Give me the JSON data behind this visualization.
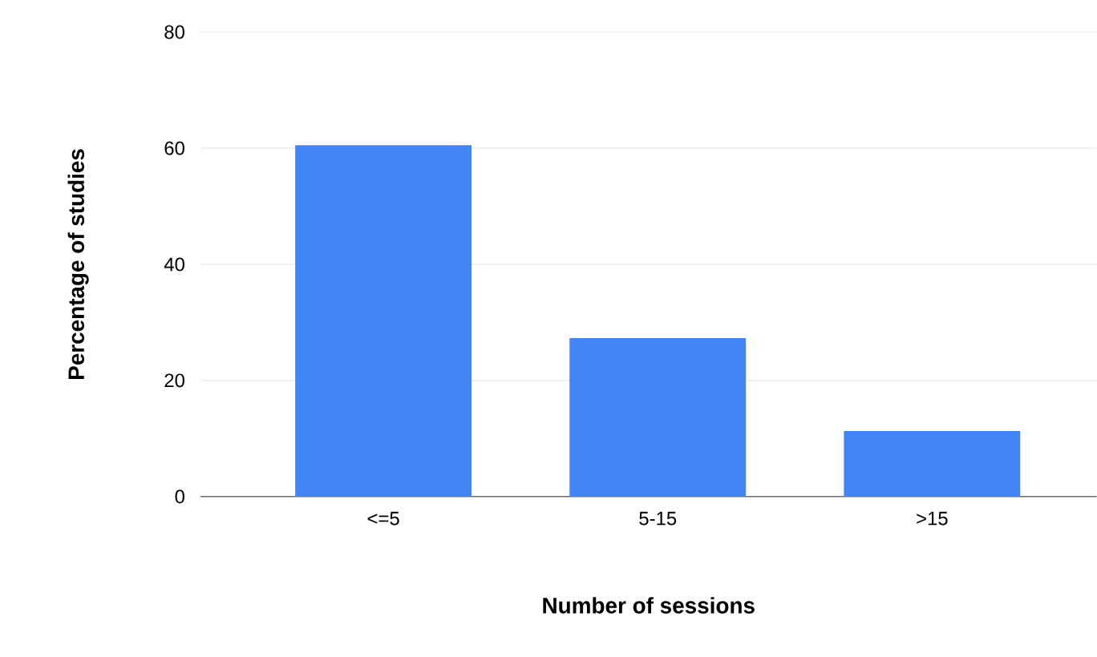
{
  "chart_data": {
    "type": "bar",
    "xlabel": "Number of sessions",
    "ylabel": "Percentage of studies",
    "categories": [
      "<=5",
      "5-15",
      ">15"
    ],
    "values": [
      60.5,
      27.3,
      11.3
    ],
    "color": "#4285f4",
    "ylim": [
      0,
      80
    ],
    "yticks": [
      0,
      20,
      40,
      60,
      80
    ],
    "grid": "y"
  }
}
